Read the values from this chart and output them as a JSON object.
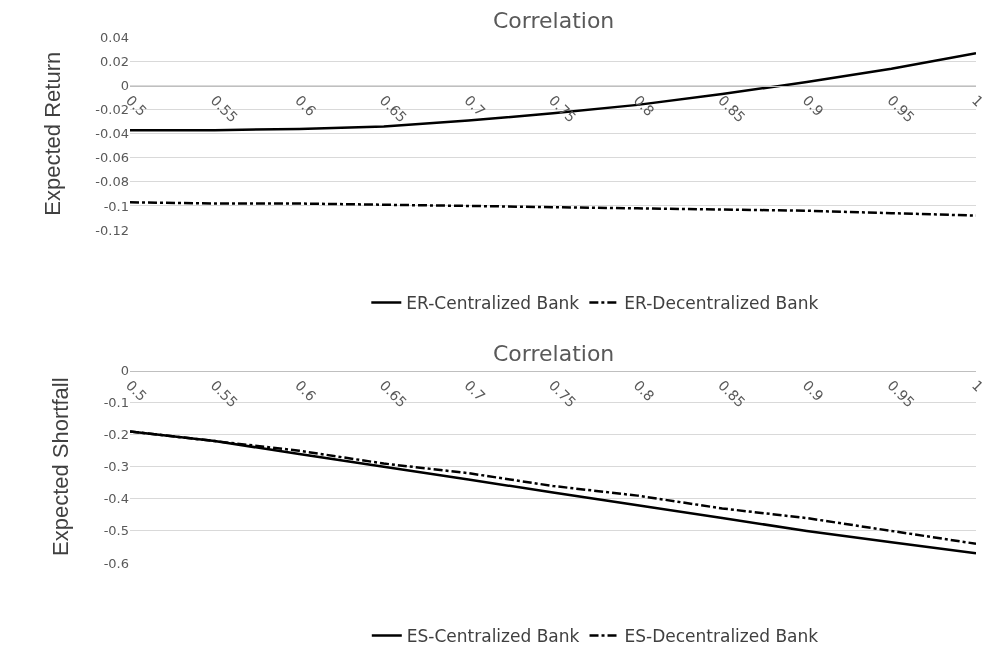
{
  "chart_data": [
    {
      "type": "line",
      "xlabel": "Correlation",
      "ylabel": "Expected Return",
      "x": [
        0.5,
        0.55,
        0.6,
        0.65,
        0.7,
        0.75,
        0.8,
        0.85,
        0.9,
        0.95,
        1
      ],
      "series": [
        {
          "name": "ER-Centralized Bank",
          "color": "#000000",
          "line_style": "solid",
          "values": [
            -0.037,
            -0.037,
            -0.036,
            -0.034,
            -0.029,
            -0.023,
            -0.016,
            -0.007,
            0.003,
            0.014,
            0.027
          ]
        },
        {
          "name": "ER-Decentralized Bank",
          "color": "#000000",
          "line_style": "dashed",
          "values": [
            -0.097,
            -0.098,
            -0.098,
            -0.099,
            -0.1,
            -0.101,
            -0.102,
            -0.103,
            -0.104,
            -0.106,
            -0.108
          ]
        }
      ],
      "xlim": [
        0.5,
        1
      ],
      "xticks": [
        0.5,
        0.55,
        0.6,
        0.65,
        0.7,
        0.75,
        0.8,
        0.85,
        0.9,
        0.95,
        1
      ],
      "ylim": [
        -0.12,
        0.04
      ],
      "yticks": [
        -0.12,
        -0.1,
        -0.08,
        -0.06,
        -0.04,
        -0.02,
        0,
        0.02,
        0.04
      ],
      "grid": "y",
      "legend": "bottom",
      "marker": "none"
    },
    {
      "type": "line",
      "xlabel": "Correlation",
      "ylabel": "Expected Shortfall",
      "x": [
        0.5,
        0.55,
        0.6,
        0.65,
        0.7,
        0.75,
        0.8,
        0.85,
        0.9,
        0.95,
        1
      ],
      "series": [
        {
          "name": "ES-Centralized Bank",
          "color": "#000000",
          "line_style": "solid",
          "values": [
            -0.19,
            -0.22,
            -0.26,
            -0.3,
            -0.34,
            -0.38,
            -0.42,
            -0.46,
            -0.5,
            -0.535,
            -0.57
          ]
        },
        {
          "name": "ES-Decentralized Bank",
          "color": "#000000",
          "line_style": "dashed",
          "values": [
            -0.19,
            -0.22,
            -0.25,
            -0.29,
            -0.32,
            -0.36,
            -0.39,
            -0.43,
            -0.46,
            -0.5,
            -0.54
          ]
        }
      ],
      "xlim": [
        0.5,
        1
      ],
      "xticks": [
        0.5,
        0.55,
        0.6,
        0.65,
        0.7,
        0.75,
        0.8,
        0.85,
        0.9,
        0.95,
        1
      ],
      "ylim": [
        -0.6,
        0
      ],
      "yticks": [
        -0.6,
        -0.5,
        -0.4,
        -0.3,
        -0.2,
        -0.1,
        0
      ],
      "grid": "y",
      "legend": "bottom",
      "marker": "none"
    }
  ]
}
